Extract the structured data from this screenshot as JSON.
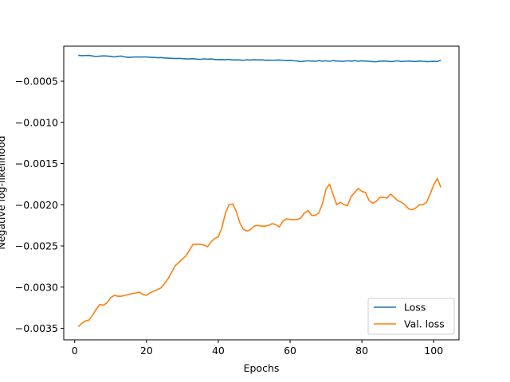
{
  "chart_data": {
    "type": "line",
    "title": "",
    "xlabel": "Epochs",
    "ylabel": "Negative log-likelihood",
    "xlim": [
      -3.05,
      107.05
    ],
    "ylim": [
      -0.00364,
      -7.45e-05
    ],
    "xticks": [
      0,
      20,
      40,
      60,
      80,
      100
    ],
    "xtick_labels": [
      "0",
      "20",
      "40",
      "60",
      "80",
      "100"
    ],
    "yticks": [
      -0.0035,
      -0.003,
      -0.0025,
      -0.002,
      -0.0015,
      -0.001,
      -0.0005
    ],
    "ytick_labels": [
      "−0.0035",
      "−0.0030",
      "−0.0025",
      "−0.0020",
      "−0.0015",
      "−0.0010",
      "−0.0005"
    ],
    "grid": false,
    "legend_position": "lower-right",
    "series": [
      {
        "name": "Loss",
        "color": "#1f77b4",
        "x": [
          1,
          2,
          3,
          4,
          5,
          6,
          7,
          8,
          9,
          10,
          11,
          12,
          13,
          14,
          15,
          16,
          17,
          18,
          19,
          20,
          21,
          22,
          23,
          24,
          25,
          26,
          27,
          28,
          29,
          30,
          31,
          32,
          33,
          34,
          35,
          36,
          37,
          38,
          39,
          40,
          41,
          42,
          43,
          44,
          45,
          46,
          47,
          48,
          49,
          50,
          51,
          52,
          53,
          54,
          55,
          56,
          57,
          58,
          59,
          60,
          61,
          62,
          63,
          64,
          65,
          66,
          67,
          68,
          69,
          70,
          71,
          72,
          73,
          74,
          75,
          76,
          77,
          78,
          79,
          80,
          81,
          82,
          83,
          84,
          85,
          86,
          87,
          88,
          89,
          90,
          91,
          92,
          93,
          94,
          95,
          96,
          97,
          98,
          99,
          100,
          101,
          102
        ],
        "y": [
          -0.000185,
          -0.00019,
          -0.000188,
          -0.000186,
          -0.000195,
          -0.0002,
          -0.000196,
          -0.000192,
          -0.000195,
          -0.000198,
          -0.000205,
          -0.000198,
          -0.000195,
          -0.000205,
          -0.00021,
          -0.000208,
          -0.000205,
          -0.000207,
          -0.000206,
          -0.000205,
          -0.00021,
          -0.00021,
          -0.000215,
          -0.000213,
          -0.000218,
          -0.00022,
          -0.000222,
          -0.000225,
          -0.000223,
          -0.000226,
          -0.000228,
          -0.00023,
          -0.000226,
          -0.000232,
          -0.000235,
          -0.000228,
          -0.000233,
          -0.00023,
          -0.000236,
          -0.000238,
          -0.000237,
          -0.000239,
          -0.000235,
          -0.000242,
          -0.000241,
          -0.000243,
          -0.000246,
          -0.00024,
          -0.000243,
          -0.000239,
          -0.000242,
          -0.000241,
          -0.000245,
          -0.000244,
          -0.000246,
          -0.000244,
          -0.000243,
          -0.000246,
          -0.000249,
          -0.000247,
          -0.000252,
          -0.000255,
          -0.000262,
          -0.000256,
          -0.000252,
          -0.000255,
          -0.000258,
          -0.00025,
          -0.000256,
          -0.000252,
          -0.000258,
          -0.00025,
          -0.000255,
          -0.000256,
          -0.000258,
          -0.000252,
          -0.000256,
          -0.00025,
          -0.000258,
          -0.000253,
          -0.000255,
          -0.000258,
          -0.000262,
          -0.000264,
          -0.000256,
          -0.000255,
          -0.000256,
          -0.000262,
          -0.000258,
          -0.000252,
          -0.000261,
          -0.000258,
          -0.000255,
          -0.000259,
          -0.00026,
          -0.000255,
          -0.000258,
          -0.000262,
          -0.000261,
          -0.000259,
          -0.000261,
          -0.000245
        ]
      },
      {
        "name": "Val. loss",
        "color": "#ff7f0e",
        "x": [
          1,
          2,
          3,
          4,
          5,
          6,
          7,
          8,
          9,
          10,
          11,
          12,
          13,
          14,
          15,
          16,
          17,
          18,
          19,
          20,
          21,
          22,
          23,
          24,
          25,
          26,
          27,
          28,
          29,
          30,
          31,
          32,
          33,
          34,
          35,
          36,
          37,
          38,
          39,
          40,
          41,
          42,
          43,
          44,
          45,
          46,
          47,
          48,
          49,
          50,
          51,
          52,
          53,
          54,
          55,
          56,
          57,
          58,
          59,
          60,
          61,
          62,
          63,
          64,
          65,
          66,
          67,
          68,
          69,
          70,
          71,
          72,
          73,
          74,
          75,
          76,
          77,
          78,
          79,
          80,
          81,
          82,
          83,
          84,
          85,
          86,
          87,
          88,
          89,
          90,
          91,
          92,
          93,
          94,
          95,
          96,
          97,
          98,
          99,
          100,
          101,
          102
        ],
        "y": [
          -0.00348,
          -0.00344,
          -0.00341,
          -0.0034,
          -0.00334,
          -0.00327,
          -0.00321,
          -0.00322,
          -0.00319,
          -0.00313,
          -0.0031,
          -0.00311,
          -0.00311,
          -0.0031,
          -0.00309,
          -0.00308,
          -0.00307,
          -0.00306,
          -0.00309,
          -0.0031,
          -0.00307,
          -0.00305,
          -0.00303,
          -0.00301,
          -0.00296,
          -0.0029,
          -0.00282,
          -0.00274,
          -0.0027,
          -0.00266,
          -0.00262,
          -0.00255,
          -0.00248,
          -0.00248,
          -0.00248,
          -0.00249,
          -0.00251,
          -0.00245,
          -0.00241,
          -0.00239,
          -0.00228,
          -0.0021,
          -0.002,
          -0.00199,
          -0.00208,
          -0.00222,
          -0.0023,
          -0.00232,
          -0.0023,
          -0.00226,
          -0.00225,
          -0.00226,
          -0.00226,
          -0.00225,
          -0.00223,
          -0.00224,
          -0.00227,
          -0.0022,
          -0.00217,
          -0.00218,
          -0.00218,
          -0.00218,
          -0.00216,
          -0.0021,
          -0.00207,
          -0.00213,
          -0.00213,
          -0.0021,
          -0.00199,
          -0.00181,
          -0.00175,
          -0.00188,
          -0.002,
          -0.00197,
          -0.002,
          -0.00201,
          -0.0019,
          -0.00185,
          -0.0018,
          -0.00184,
          -0.00185,
          -0.00195,
          -0.00198,
          -0.00196,
          -0.00191,
          -0.00191,
          -0.00192,
          -0.00187,
          -0.00191,
          -0.00195,
          -0.00197,
          -0.002,
          -0.00205,
          -0.00206,
          -0.00204,
          -0.002,
          -0.002,
          -0.00197,
          -0.00187,
          -0.00176,
          -0.00168,
          -0.00179
        ]
      }
    ]
  }
}
